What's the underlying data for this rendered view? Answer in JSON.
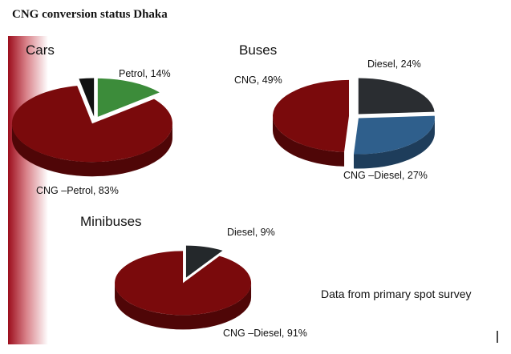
{
  "title": "CNG conversion status Dhaka",
  "note": "Data from primary spot survey",
  "chart_data": [
    {
      "type": "pie",
      "title": "Cars",
      "values": [
        14,
        83,
        3
      ],
      "value_labels": [
        "Petrol, 14%",
        "CNG –Petrol, 83%",
        null
      ],
      "colors": [
        "#3c8c3a",
        "#7a0a0c",
        "#111111"
      ]
    },
    {
      "type": "pie",
      "title": "Buses",
      "values": [
        24,
        27,
        49
      ],
      "value_labels": [
        "Diesel, 24%",
        "CNG –Diesel, 27%",
        "CNG, 49%"
      ],
      "colors": [
        "#2a2d31",
        "#2f5f8c",
        "#7a0a0c"
      ]
    },
    {
      "type": "pie",
      "title": "Minibuses",
      "values": [
        9,
        91
      ],
      "value_labels": [
        "Diesel, 9%",
        "CNG –Diesel, 91%"
      ],
      "colors": [
        "#24282b",
        "#7a0a0c"
      ]
    }
  ]
}
